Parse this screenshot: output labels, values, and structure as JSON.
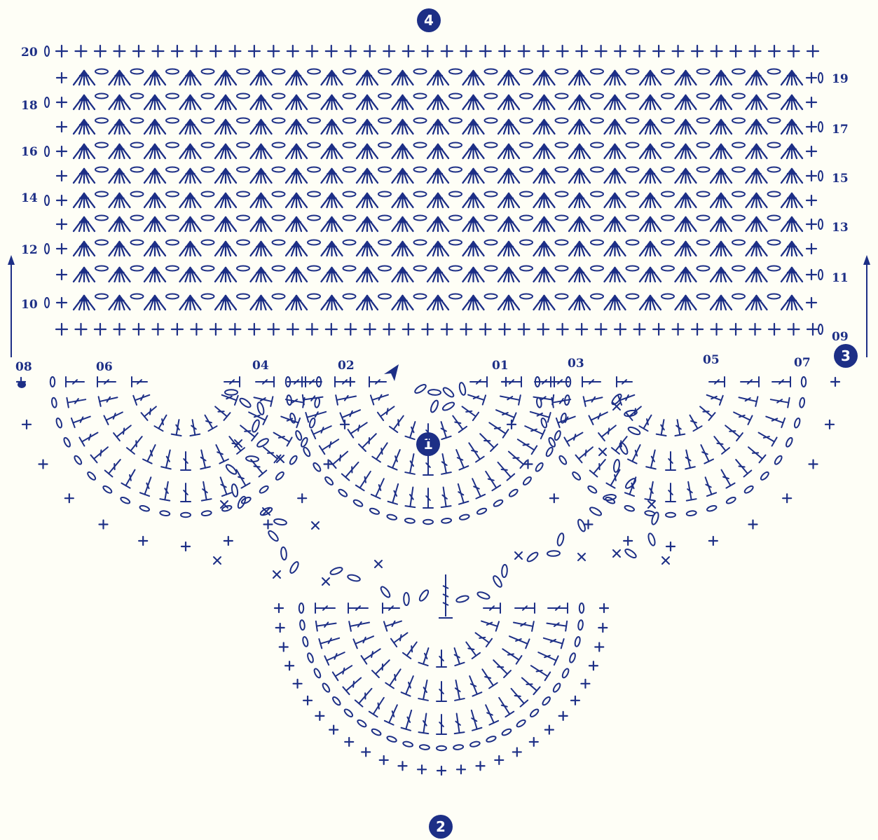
{
  "diagram": {
    "colors": {
      "ink": "#1d2f86",
      "light": "#5866b4",
      "background": "#fefef6"
    },
    "markers": [
      "1",
      "2",
      "3",
      "4"
    ],
    "left_row_labels": [
      "20",
      "18",
      "16",
      "14",
      "12",
      "10"
    ],
    "right_row_labels": [
      "19",
      "17",
      "15",
      "13",
      "11",
      "09"
    ],
    "round_labels": [
      "08",
      "06",
      "04",
      "02",
      "01",
      "03",
      "05",
      "07"
    ],
    "icons": [
      "single-crochet",
      "chain",
      "double-crochet",
      "cluster-fan",
      "slip-stitch",
      "direction-arrow",
      "start-arrowhead"
    ]
  }
}
